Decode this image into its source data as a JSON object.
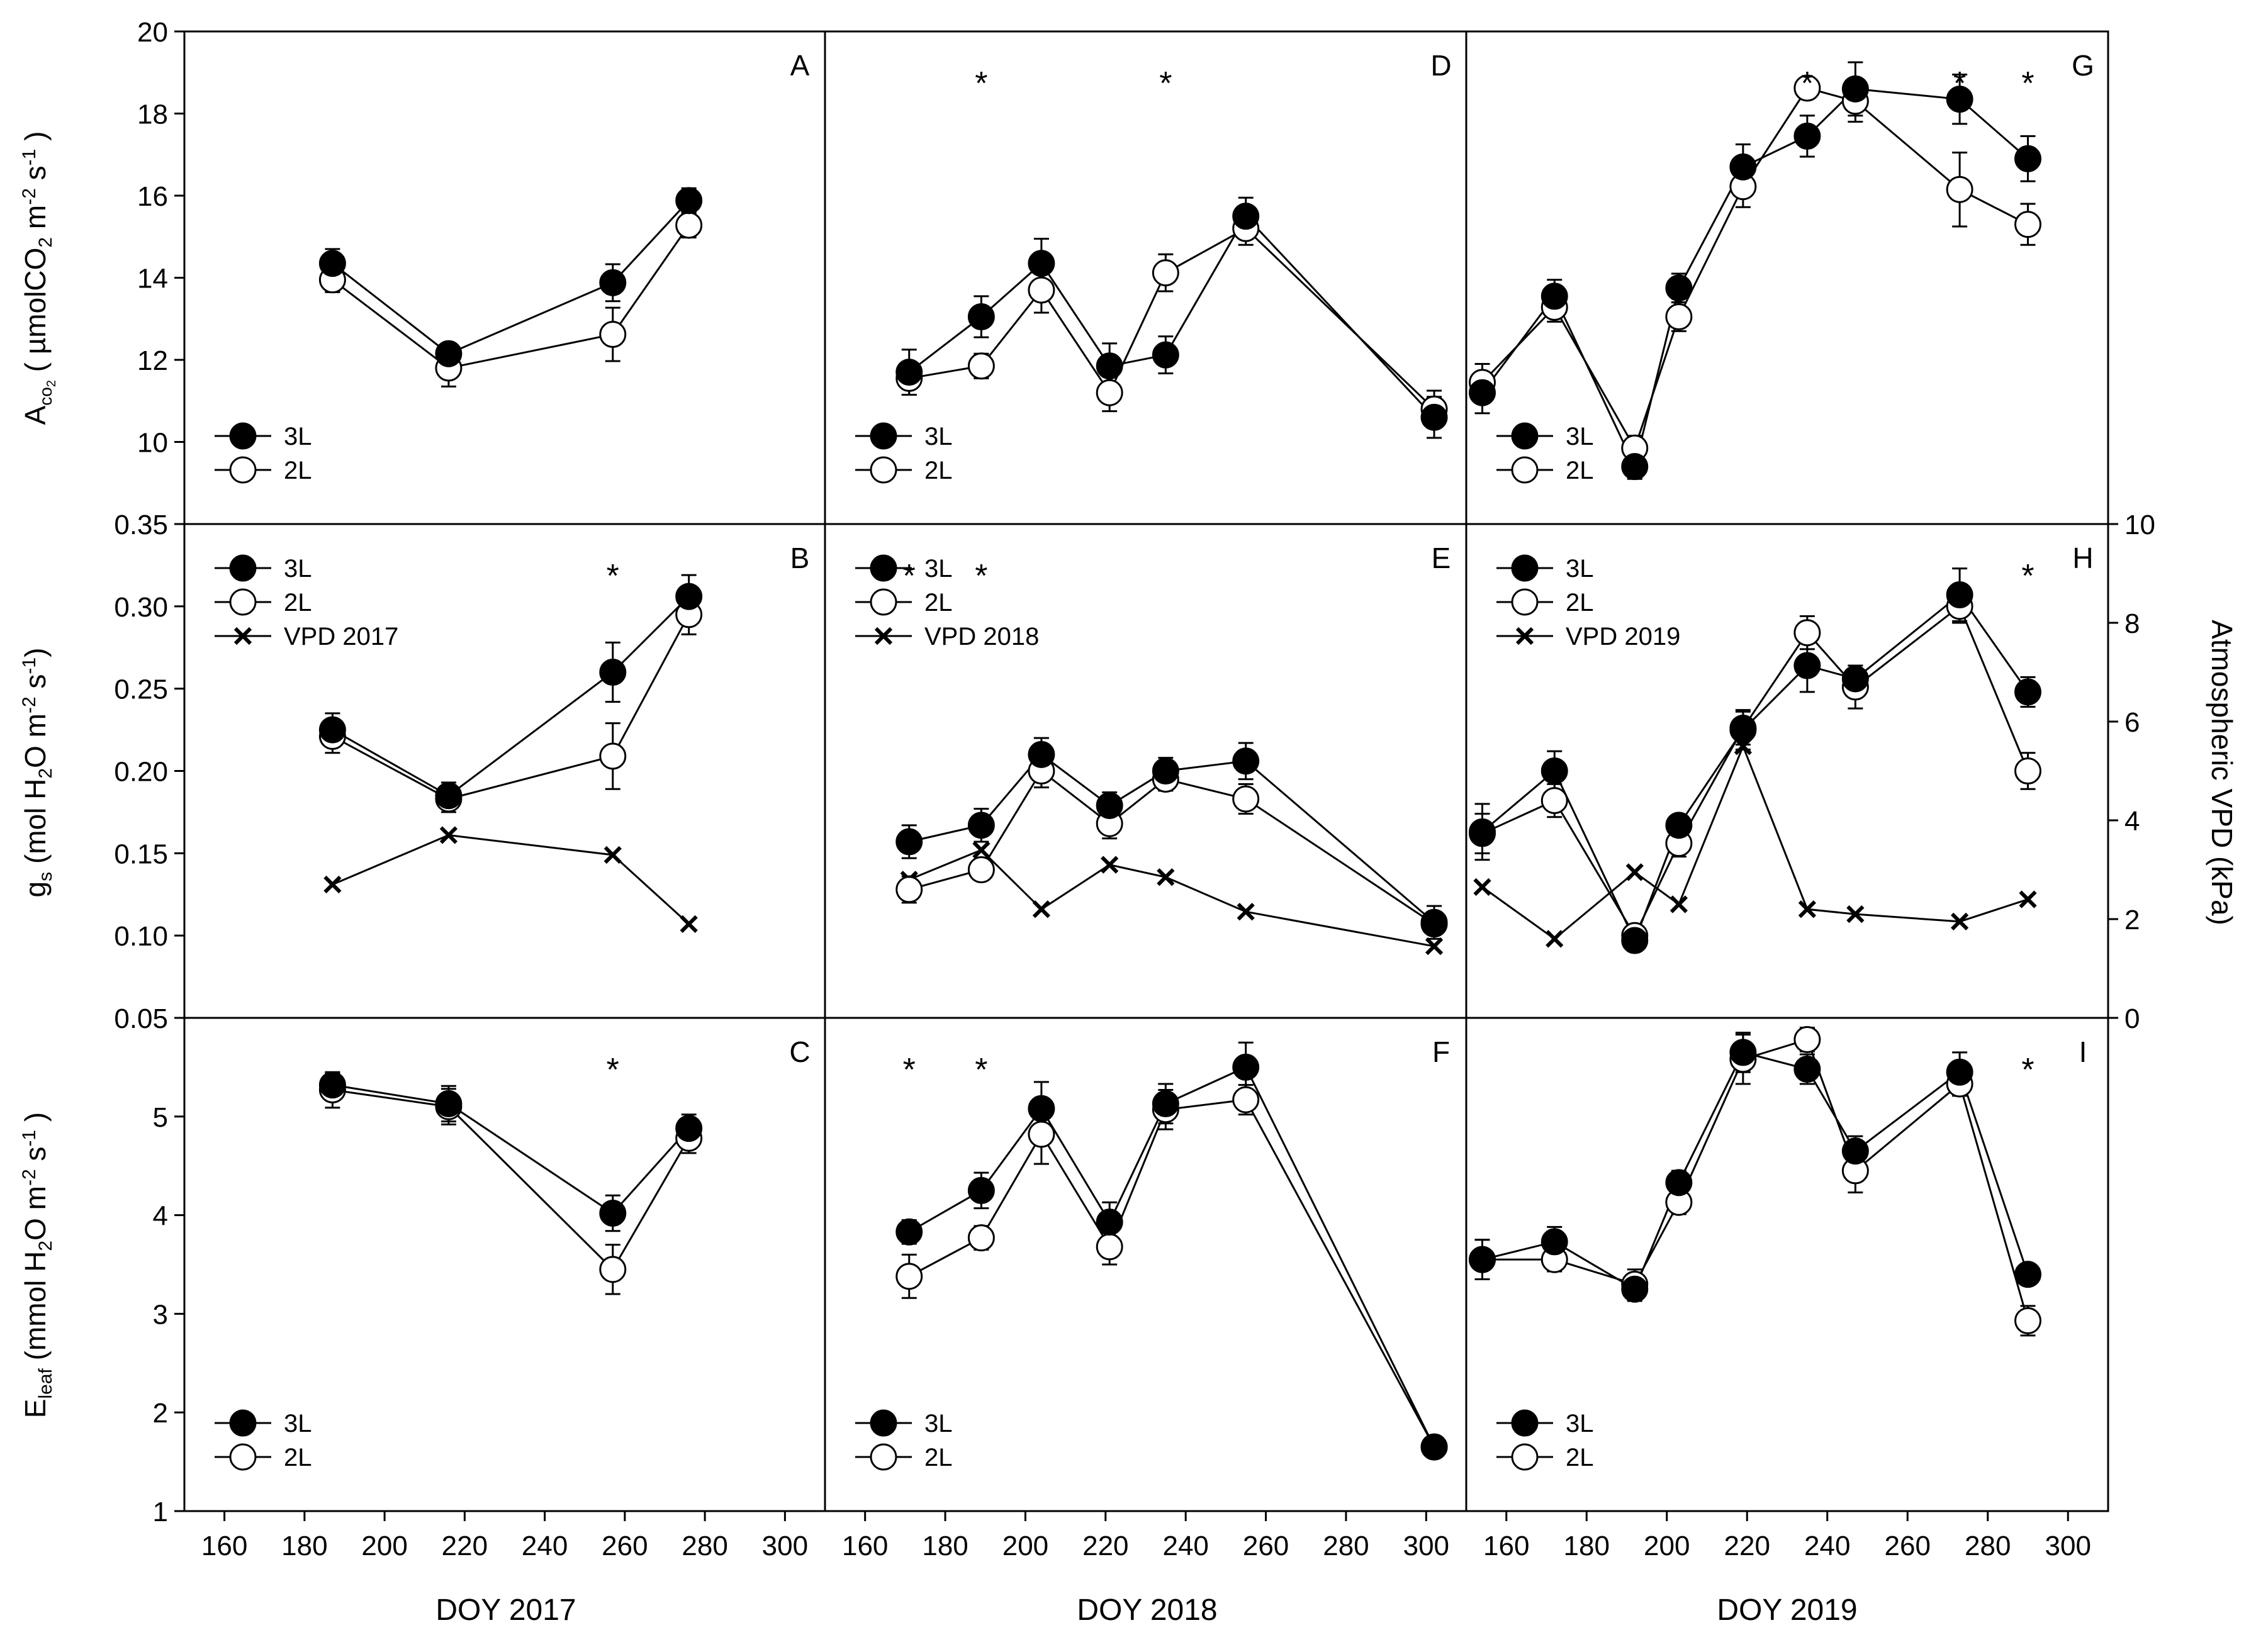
{
  "colors": {
    "ink": "#000000",
    "open_fill": "#ffffff",
    "background": "#ffffff"
  },
  "figure": {
    "x_axis_titles": [
      "DOY 2017",
      "DOY 2018",
      "DOY 2019"
    ],
    "y_axis_titles": {
      "A": {
        "main": "A",
        "sub": "co",
        "subsub": "2",
        "rest1": " ( µmolCO",
        "sub2": "2",
        "rest2": " m",
        "sup1": "-2",
        "rest3": " s",
        "sup2": "-1",
        "rest4": " )"
      },
      "g": {
        "main": "g",
        "sub": "s",
        "rest1": " (mol H",
        "sub2": "2",
        "rest2": "O m",
        "sup1": "-2",
        "rest3": " s",
        "sup2": "-1",
        "rest4": ")"
      },
      "E": {
        "main": "E",
        "sub": "leaf",
        "rest1": " (mmol H",
        "sub2": "2",
        "rest2": "O m",
        "sup1": "-2",
        "rest3": " s",
        "sup2": "-1",
        "rest4": " )"
      }
    },
    "right_axis_title": "Atmospheric VPD (kPa)"
  },
  "chart_data": {
    "type": "line",
    "x_range": [
      150,
      310
    ],
    "x_ticks": [
      160,
      180,
      200,
      220,
      240,
      260,
      280,
      300
    ],
    "rows": [
      {
        "id": "A",
        "ylim": [
          8,
          20
        ],
        "yticks": [
          10,
          12,
          14,
          16,
          18,
          20
        ],
        "ytick_labels": [
          "10",
          "12",
          "14",
          "16",
          "18",
          "20"
        ]
      },
      {
        "id": "g",
        "ylim": [
          0.05,
          0.35
        ],
        "yticks": [
          0.05,
          0.1,
          0.15,
          0.2,
          0.25,
          0.3,
          0.35
        ],
        "ytick_labels": [
          "0.05",
          "0.10",
          "0.15",
          "0.20",
          "0.25",
          "0.30",
          "0.35"
        ]
      },
      {
        "id": "E",
        "ylim": [
          1,
          6
        ],
        "yticks": [
          1,
          2,
          3,
          4,
          5
        ],
        "ytick_labels": [
          "1",
          "2",
          "3",
          "4",
          "5"
        ]
      }
    ],
    "vpd_axis": {
      "ylim": [
        0,
        10
      ],
      "ticks": [
        0,
        2,
        4,
        6,
        8,
        10
      ],
      "tick_labels": [
        "0",
        "2",
        "4",
        "6",
        "8",
        "10"
      ]
    },
    "panels": [
      {
        "letter": "A",
        "row": 0,
        "col": 0,
        "series": [
          {
            "name": "3L",
            "marker": "filled",
            "x": [
              187,
              216,
              257,
              276
            ],
            "y": [
              14.35,
              12.15,
              13.88,
              15.88
            ],
            "err": [
              0.35,
              0.25,
              0.45,
              0.3
            ]
          },
          {
            "name": "2L",
            "marker": "open",
            "x": [
              187,
              216,
              257,
              276
            ],
            "y": [
              13.95,
              11.8,
              12.62,
              15.28
            ],
            "err": [
              0.3,
              0.45,
              0.65,
              0.3
            ]
          }
        ],
        "stars": [],
        "legend": [
          "3L",
          "2L"
        ]
      },
      {
        "letter": "B",
        "row": 1,
        "col": 0,
        "series": [
          {
            "name": "3L",
            "marker": "filled",
            "x": [
              187,
              216,
              257,
              276
            ],
            "y": [
              0.225,
              0.185,
              0.26,
              0.306
            ],
            "err": [
              0.01,
              0.008,
              0.018,
              0.013
            ]
          },
          {
            "name": "2L",
            "marker": "open",
            "x": [
              187,
              216,
              257,
              276
            ],
            "y": [
              0.221,
              0.183,
              0.209,
              0.295
            ],
            "err": [
              0.01,
              0.008,
              0.02,
              0.012
            ]
          }
        ],
        "vpd": {
          "name": "VPD 2017",
          "x": [
            187,
            216,
            257,
            276
          ],
          "y": [
            2.7,
            3.7,
            3.3,
            1.9
          ]
        },
        "stars": [
          257
        ],
        "legend": [
          "3L",
          "2L",
          "VPD 2017"
        ]
      },
      {
        "letter": "C",
        "row": 2,
        "col": 0,
        "series": [
          {
            "name": "3L",
            "marker": "filled",
            "x": [
              187,
              216,
              257,
              276
            ],
            "y": [
              5.32,
              5.13,
              4.02,
              4.88
            ],
            "err": [
              0.12,
              0.18,
              0.18,
              0.14
            ]
          },
          {
            "name": "2L",
            "marker": "open",
            "x": [
              187,
              216,
              257,
              276
            ],
            "y": [
              5.27,
              5.1,
              3.45,
              4.78
            ],
            "err": [
              0.18,
              0.18,
              0.25,
              0.15
            ]
          }
        ],
        "stars": [
          257
        ],
        "legend": [
          "3L",
          "2L"
        ]
      },
      {
        "letter": "D",
        "row": 0,
        "col": 1,
        "series": [
          {
            "name": "3L",
            "marker": "filled",
            "x": [
              171,
              189,
              204,
              221,
              235,
              255,
              302
            ],
            "y": [
              11.7,
              13.05,
              14.35,
              11.85,
              12.12,
              15.5,
              10.6
            ],
            "err": [
              0.55,
              0.5,
              0.6,
              0.55,
              0.45,
              0.45,
              0.5
            ]
          },
          {
            "name": "2L",
            "marker": "open",
            "x": [
              171,
              189,
              204,
              221,
              235,
              255,
              302
            ],
            "y": [
              11.55,
              11.85,
              13.7,
              11.2,
              14.12,
              15.2,
              10.8
            ],
            "err": [
              0.4,
              0.3,
              0.55,
              0.45,
              0.45,
              0.4,
              0.45
            ]
          }
        ],
        "stars": [
          189,
          235
        ],
        "legend": [
          "3L",
          "2L"
        ]
      },
      {
        "letter": "E",
        "row": 1,
        "col": 1,
        "series": [
          {
            "name": "3L",
            "marker": "filled",
            "x": [
              171,
              189,
              204,
              221,
              235,
              255,
              302
            ],
            "y": [
              0.157,
              0.167,
              0.21,
              0.179,
              0.2,
              0.206,
              0.108
            ],
            "err": [
              0.01,
              0.01,
              0.01,
              0.008,
              0.008,
              0.011,
              0.01
            ]
          },
          {
            "name": "2L",
            "marker": "open",
            "x": [
              171,
              189,
              204,
              221,
              235,
              255,
              302
            ],
            "y": [
              0.128,
              0.14,
              0.2,
              0.168,
              0.195,
              0.183,
              0.107
            ],
            "err": [
              0.008,
              0.006,
              0.01,
              0.009,
              0.007,
              0.009,
              0.006
            ]
          }
        ],
        "vpd": {
          "name": "VPD 2018",
          "x": [
            171,
            189,
            204,
            221,
            235,
            255,
            302
          ],
          "y": [
            2.8,
            3.4,
            2.2,
            3.1,
            2.85,
            2.15,
            1.45
          ]
        },
        "stars": [
          171,
          189
        ],
        "legend": [
          "3L",
          "2L",
          "VPD 2018"
        ]
      },
      {
        "letter": "F",
        "row": 2,
        "col": 1,
        "series": [
          {
            "name": "3L",
            "marker": "filled",
            "x": [
              171,
              189,
              204,
              221,
              235,
              255,
              302
            ],
            "y": [
              3.83,
              4.25,
              5.08,
              3.93,
              5.13,
              5.5,
              1.65
            ],
            "err": [
              0.12,
              0.18,
              0.27,
              0.2,
              0.2,
              0.25,
              0.05
            ]
          },
          {
            "name": "2L",
            "marker": "open",
            "x": [
              171,
              189,
              204,
              221,
              235,
              255,
              302
            ],
            "y": [
              3.38,
              3.77,
              4.82,
              3.68,
              5.07,
              5.17,
              1.65
            ],
            "err": [
              0.22,
              0.12,
              0.3,
              0.18,
              0.2,
              0.15,
              0.05
            ]
          }
        ],
        "stars": [
          171,
          189
        ],
        "legend": [
          "3L",
          "2L"
        ]
      },
      {
        "letter": "G",
        "row": 0,
        "col": 2,
        "series": [
          {
            "name": "3L",
            "marker": "filled",
            "x": [
              154,
              172,
              192,
              203,
              219,
              235,
              247,
              273,
              290
            ],
            "y": [
              11.2,
              13.55,
              9.4,
              13.75,
              16.7,
              17.45,
              18.6,
              18.35,
              16.9
            ],
            "err": [
              0.5,
              0.4,
              0.3,
              0.35,
              0.55,
              0.5,
              0.65,
              0.6,
              0.55
            ]
          },
          {
            "name": "2L",
            "marker": "open",
            "x": [
              154,
              172,
              192,
              203,
              219,
              235,
              247,
              273,
              290
            ],
            "y": [
              11.45,
              13.28,
              9.85,
              13.05,
              16.22,
              18.62,
              18.3,
              16.15,
              15.3
            ],
            "err": [
              0.45,
              0.35,
              0.3,
              0.35,
              0.5,
              0.25,
              0.5,
              0.9,
              0.5
            ]
          }
        ],
        "stars": [
          235,
          273,
          290
        ],
        "legend": [
          "3L",
          "2L"
        ]
      },
      {
        "letter": "H",
        "row": 1,
        "col": 2,
        "series": [
          {
            "name": "3L",
            "marker": "filled",
            "x": [
              154,
              172,
              192,
              203,
              219,
              235,
              247,
              273,
              290
            ],
            "y": [
              0.163,
              0.2,
              0.097,
              0.167,
              0.225,
              0.264,
              0.256,
              0.307,
              0.248
            ],
            "err": [
              0.017,
              0.012,
              0.006,
              0.006,
              0.012,
              0.016,
              0.008,
              0.016,
              0.009
            ]
          },
          {
            "name": "2L",
            "marker": "open",
            "x": [
              154,
              172,
              192,
              203,
              219,
              235,
              247,
              273,
              290
            ],
            "y": [
              0.162,
              0.182,
              0.1,
              0.156,
              0.226,
              0.284,
              0.251,
              0.3,
              0.2
            ],
            "err": [
              0.012,
              0.01,
              0.005,
              0.008,
              0.01,
              0.01,
              0.013,
              0.01,
              0.011
            ]
          }
        ],
        "vpd": {
          "name": "VPD 2019",
          "x": [
            154,
            172,
            192,
            203,
            219,
            235,
            247,
            273,
            290
          ],
          "y": [
            2.65,
            1.6,
            2.95,
            2.3,
            5.5,
            2.2,
            2.1,
            1.95,
            2.4
          ]
        },
        "stars": [
          290
        ],
        "legend": [
          "3L",
          "2L",
          "VPD 2019"
        ]
      },
      {
        "letter": "I",
        "row": 2,
        "col": 2,
        "series": [
          {
            "name": "3L",
            "marker": "filled",
            "x": [
              154,
              172,
              192,
              203,
              219,
              235,
              247,
              273,
              290
            ],
            "y": [
              3.55,
              3.73,
              3.25,
              4.33,
              5.65,
              5.48,
              4.65,
              5.45,
              3.4
            ],
            "err": [
              0.2,
              0.15,
              0.12,
              0.12,
              0.2,
              0.15,
              0.15,
              0.2,
              0.08
            ]
          },
          {
            "name": "2L",
            "marker": "open",
            "x": [
              154,
              172,
              192,
              203,
              219,
              235,
              247,
              273,
              290
            ],
            "y": [
              3.55,
              3.55,
              3.3,
              4.13,
              5.58,
              5.78,
              4.45,
              5.33,
              2.93
            ],
            "err": [
              0.2,
              0.12,
              0.15,
              0.12,
              0.25,
              0.12,
              0.22,
              0.12,
              0.15
            ]
          }
        ],
        "stars": [
          290
        ],
        "legend": [
          "3L",
          "2L"
        ]
      }
    ]
  }
}
